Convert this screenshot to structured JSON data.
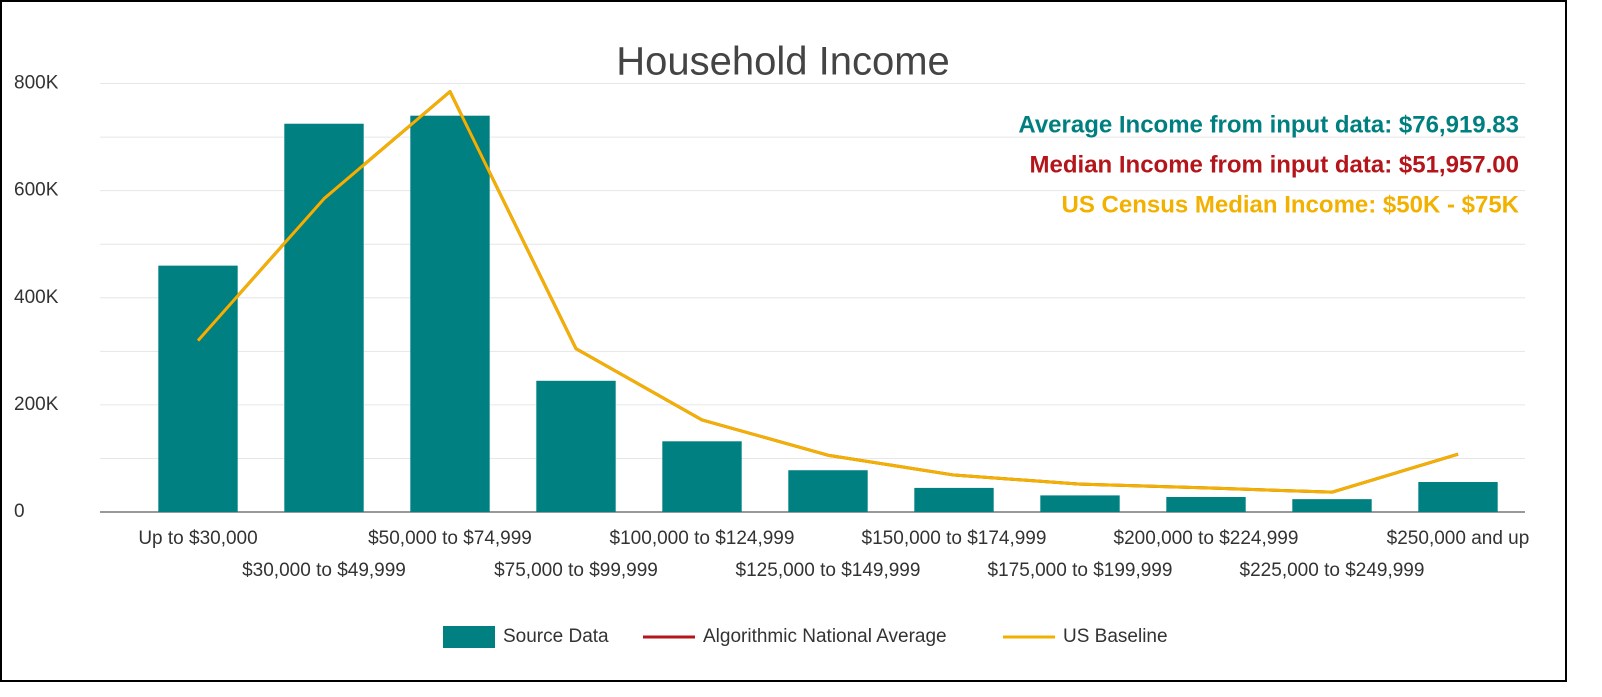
{
  "chart_data": {
    "type": "bar_line",
    "title": "Household Income",
    "categories": [
      "Up to $30,000",
      "$30,000 to $49,999",
      "$50,000 to $74,999",
      "$75,000 to $99,999",
      "$100,000 to $124,999",
      "$125,000 to $149,999",
      "$150,000 to $174,999",
      "$175,000 to $199,999",
      "$200,000 to $224,999",
      "$225,000 to $249,999",
      "$250,000 and up"
    ],
    "series": [
      {
        "name": "Source Data",
        "type": "bar",
        "color": "#008080",
        "values": [
          460000,
          725000,
          740000,
          245000,
          132000,
          78000,
          45000,
          31000,
          28000,
          24000,
          56000
        ]
      },
      {
        "name": "Algorithmic National Average",
        "type": "line",
        "color": "#b3151b",
        "values": [
          320000,
          585000,
          785000,
          305000,
          172000,
          106000,
          69000,
          52000,
          45000,
          37000,
          108000
        ]
      },
      {
        "name": "US Baseline",
        "type": "line",
        "color": "#f2b100",
        "values": [
          320000,
          585000,
          785000,
          305000,
          172000,
          106000,
          69000,
          52000,
          45000,
          37000,
          108000
        ]
      }
    ],
    "ylim": [
      0,
      900000
    ],
    "yticks": [
      0,
      {
        "value": 200000,
        "label": "200K"
      },
      {
        "value": 400000,
        "label": "400K"
      },
      {
        "value": 600000,
        "label": "600K"
      },
      {
        "value": 800000,
        "label": "800K"
      }
    ],
    "minor_yticks": [
      100000,
      300000,
      500000,
      700000
    ],
    "grid": true,
    "legend": "bottom",
    "annotations": [
      {
        "text": "Average Income from input data: $76,919.83",
        "color": "#007f80"
      },
      {
        "text": "Median Income from input data: $51,957.00",
        "color": "#b3151b"
      },
      {
        "text": "US Census Median Income: $50K - $75K",
        "color": "#f2b100"
      }
    ]
  }
}
